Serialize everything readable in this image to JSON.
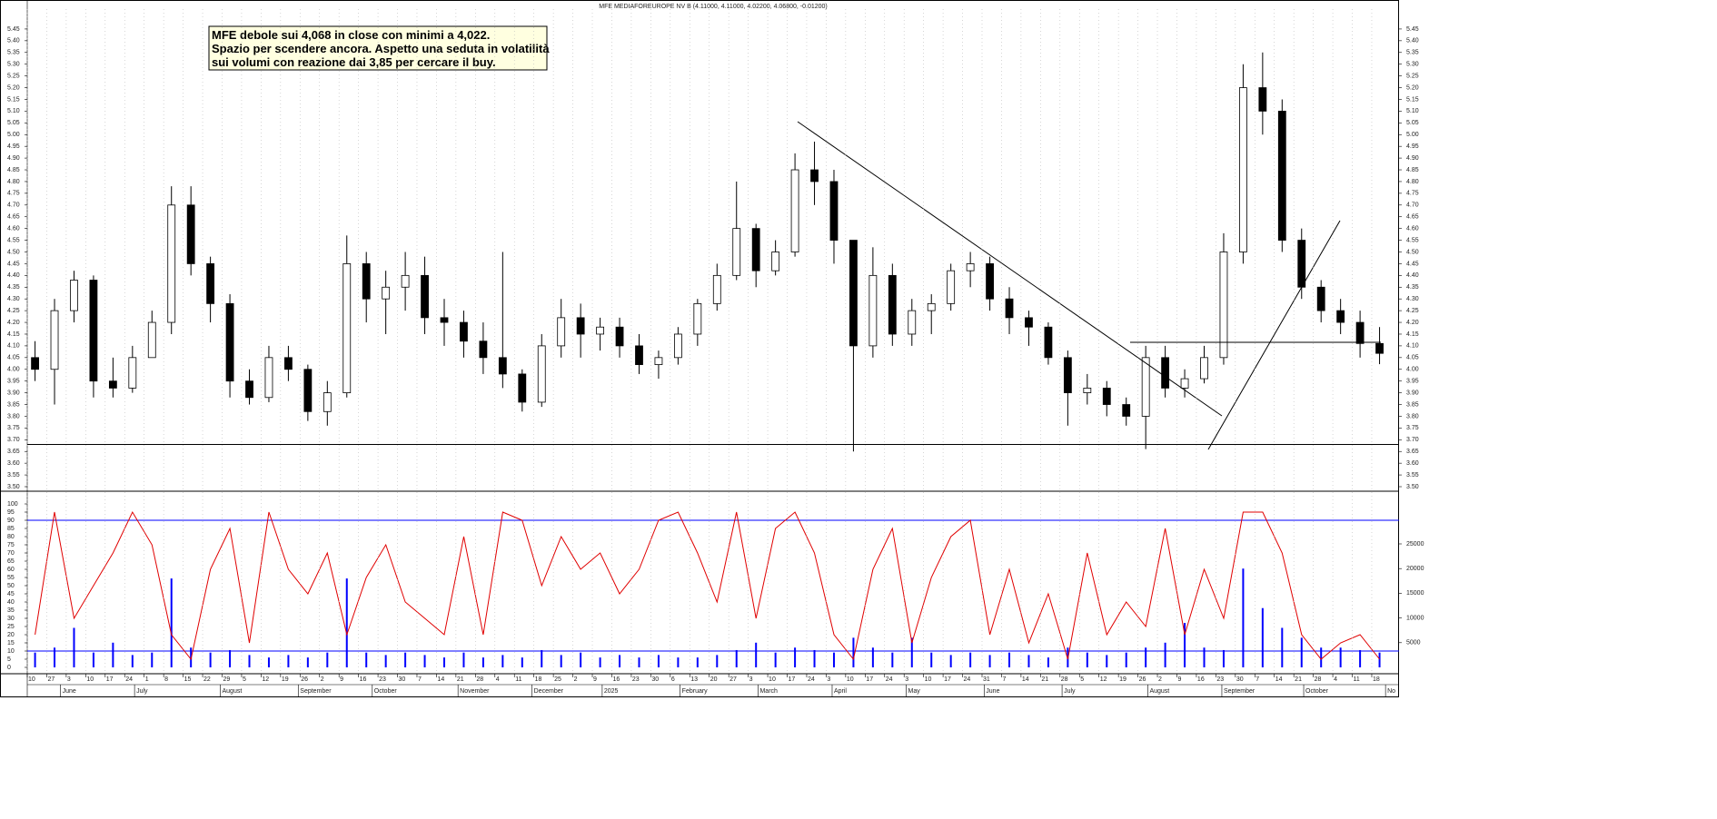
{
  "chart_data": [
    {
      "type": "candlestick",
      "title": "MFE MEDIAFOREUROPE NV B (4.11000, 4.11000, 4.02200, 4.06800, -0.01200)",
      "annotation": [
        "MFE debole sui 4,068 in close con minimi a 4,022.",
        "Spazio per scendere ancora. Aspetto una seduta in volatilità",
        "sui volumi con reazione dai 3,85 per cercare il buy."
      ],
      "xlim": [
        0,
        352
      ],
      "ylim": [
        3.5,
        5.5
      ],
      "yticks": [
        {
          "value": 3.5,
          "label": "3.50"
        },
        3.55,
        {
          "value": 3.6,
          "label": "3.60"
        },
        3.65,
        {
          "value": 3.7,
          "label": "3.70"
        },
        3.75,
        {
          "value": 3.8,
          "label": "3.80"
        },
        3.85,
        {
          "value": 3.9,
          "label": "3.90"
        },
        3.95,
        {
          "value": 4,
          "label": "4.00"
        },
        4.05,
        {
          "value": 4.1,
          "label": "4.10"
        },
        4.15,
        {
          "value": 4.2,
          "label": "4.20"
        },
        4.25,
        {
          "value": 4.3,
          "label": "4.30"
        },
        4.35,
        {
          "value": 4.4,
          "label": "4.40"
        },
        4.45,
        {
          "value": 4.5,
          "label": "4.50"
        },
        4.55,
        {
          "value": 4.6,
          "label": "4.60"
        },
        4.65,
        {
          "value": 4.7,
          "label": "4.70"
        },
        4.75,
        {
          "value": 4.8,
          "label": "4.80"
        },
        4.85,
        {
          "value": 4.9,
          "label": "4.90"
        },
        4.95,
        {
          "value": 5,
          "label": "5.00"
        },
        5.05,
        {
          "value": 5.1,
          "label": "5.10"
        },
        5.15,
        {
          "value": 5.2,
          "label": "5.20"
        },
        5.25,
        {
          "value": 5.3,
          "label": "5.30"
        },
        5.35,
        {
          "value": 5.4,
          "label": "5.40"
        },
        5.45
      ],
      "levels": [
        3.68
      ],
      "up_color": "#ffffff",
      "down_color": "#000000",
      "x": [
        2,
        7,
        12,
        17,
        22,
        27,
        32,
        37,
        42,
        47,
        52,
        57,
        62,
        67,
        72,
        77,
        82,
        87,
        92,
        97,
        102,
        107,
        112,
        117,
        122,
        127,
        132,
        137,
        142,
        147,
        152,
        157,
        162,
        167,
        172,
        177,
        182,
        187,
        192,
        197,
        202,
        207,
        212,
        217,
        222,
        227,
        232,
        237,
        242,
        247,
        252,
        257,
        262,
        267,
        272,
        277,
        282,
        287,
        292,
        297,
        302,
        307,
        312,
        317,
        322,
        327,
        332,
        337,
        342,
        347
      ],
      "open": [
        4.05,
        4.0,
        4.25,
        4.38,
        3.95,
        3.92,
        4.05,
        4.2,
        4.7,
        4.45,
        4.28,
        3.95,
        3.88,
        4.05,
        4.0,
        3.82,
        3.9,
        4.45,
        4.3,
        4.35,
        4.4,
        4.22,
        4.2,
        4.12,
        4.05,
        3.98,
        3.86,
        4.1,
        4.22,
        4.15,
        4.18,
        4.1,
        4.02,
        4.05,
        4.15,
        4.28,
        4.4,
        4.6,
        4.42,
        4.5,
        4.85,
        4.8,
        4.55,
        4.1,
        4.4,
        4.15,
        4.25,
        4.28,
        4.42,
        4.45,
        4.3,
        4.22,
        4.18,
        4.05,
        3.9,
        3.92,
        3.85,
        3.8,
        4.05,
        3.92,
        3.96,
        4.05,
        4.5,
        5.2,
        5.1,
        4.55,
        4.35,
        4.25,
        4.2,
        4.11
      ],
      "high": [
        4.12,
        4.3,
        4.42,
        4.4,
        4.05,
        4.1,
        4.25,
        4.78,
        4.78,
        4.48,
        4.32,
        4.0,
        4.1,
        4.1,
        4.02,
        3.95,
        4.57,
        4.5,
        4.42,
        4.5,
        4.48,
        4.3,
        4.25,
        4.2,
        4.5,
        4.0,
        4.15,
        4.3,
        4.28,
        4.22,
        4.22,
        4.15,
        4.08,
        4.18,
        4.3,
        4.45,
        4.8,
        4.62,
        4.55,
        4.92,
        4.97,
        4.85,
        4.55,
        4.52,
        4.45,
        4.3,
        4.32,
        4.45,
        4.5,
        4.48,
        4.35,
        4.25,
        4.2,
        4.08,
        3.98,
        3.95,
        3.88,
        4.1,
        4.1,
        4.0,
        4.1,
        4.58,
        5.3,
        5.35,
        5.15,
        4.6,
        4.38,
        4.3,
        4.25,
        4.18
      ],
      "low": [
        3.95,
        3.85,
        4.2,
        3.88,
        3.88,
        3.9,
        4.05,
        4.15,
        4.4,
        4.2,
        3.88,
        3.85,
        3.86,
        3.95,
        3.78,
        3.76,
        3.88,
        4.2,
        4.15,
        4.25,
        4.15,
        4.1,
        4.05,
        3.98,
        3.92,
        3.82,
        3.84,
        4.05,
        4.05,
        4.08,
        4.05,
        3.98,
        3.96,
        4.02,
        4.1,
        4.25,
        4.38,
        4.35,
        4.4,
        4.48,
        4.7,
        4.45,
        3.65,
        4.05,
        4.1,
        4.1,
        4.15,
        4.25,
        4.35,
        4.25,
        4.15,
        4.1,
        4.02,
        3.76,
        3.85,
        3.8,
        3.76,
        3.66,
        3.88,
        3.88,
        3.94,
        4.02,
        4.45,
        5.0,
        4.5,
        4.3,
        4.2,
        4.15,
        4.05,
        4.022
      ],
      "close": [
        4.0,
        4.25,
        4.38,
        3.95,
        3.92,
        4.05,
        4.2,
        4.7,
        4.45,
        4.28,
        3.95,
        3.88,
        4.05,
        4.0,
        3.82,
        3.9,
        4.45,
        4.3,
        4.35,
        4.4,
        4.22,
        4.2,
        4.12,
        4.05,
        3.98,
        3.86,
        4.1,
        4.22,
        4.15,
        4.18,
        4.1,
        4.02,
        4.05,
        4.15,
        4.28,
        4.4,
        4.6,
        4.42,
        4.5,
        4.85,
        4.8,
        4.55,
        4.1,
        4.4,
        4.15,
        4.25,
        4.28,
        4.42,
        4.45,
        4.3,
        4.22,
        4.18,
        4.05,
        3.9,
        3.92,
        3.85,
        3.8,
        4.05,
        3.92,
        3.96,
        4.05,
        4.5,
        5.2,
        5.1,
        4.55,
        4.35,
        4.25,
        4.2,
        4.11,
        4.068
      ]
    },
    {
      "type": "indicator",
      "xlim": [
        0,
        352
      ],
      "ylim": [
        0,
        100
      ],
      "yticks": [
        0,
        5,
        10,
        15,
        20,
        25,
        30,
        35,
        40,
        45,
        50,
        55,
        60,
        65,
        70,
        75,
        80,
        85,
        90,
        95,
        100
      ],
      "y2lim": [
        0,
        25000
      ],
      "y2ticks": [
        5000,
        10000,
        15000,
        20000,
        25000
      ],
      "levels": [
        90,
        10
      ],
      "level_color": "#0000ff",
      "x": [
        2,
        7,
        12,
        17,
        22,
        27,
        32,
        37,
        42,
        47,
        52,
        57,
        62,
        67,
        72,
        77,
        82,
        87,
        92,
        97,
        102,
        107,
        112,
        117,
        122,
        127,
        132,
        137,
        142,
        147,
        152,
        157,
        162,
        167,
        172,
        177,
        182,
        187,
        192,
        197,
        202,
        207,
        212,
        217,
        222,
        227,
        232,
        237,
        242,
        247,
        252,
        257,
        262,
        267,
        272,
        277,
        282,
        287,
        292,
        297,
        302,
        307,
        312,
        317,
        322,
        327,
        332,
        337,
        342,
        347
      ],
      "series": [
        {
          "type": "bar",
          "axis": "y2",
          "color": "#0000ff",
          "values": [
            3000,
            4000,
            8000,
            3000,
            5000,
            2500,
            3000,
            18000,
            4000,
            3000,
            3500,
            2500,
            2000,
            2500,
            2000,
            3000,
            18000,
            3000,
            2500,
            3000,
            2500,
            2000,
            3000,
            2000,
            2500,
            2000,
            3500,
            2500,
            3000,
            2000,
            2500,
            2000,
            2500,
            2000,
            2000,
            2500,
            3500,
            5000,
            3000,
            4000,
            3500,
            3000,
            6000,
            4000,
            3000,
            6000,
            3000,
            2500,
            3000,
            2500,
            3000,
            2500,
            2000,
            4000,
            3000,
            2500,
            3000,
            4000,
            5000,
            9000,
            4000,
            3500,
            20000,
            12000,
            8000,
            6000,
            4000,
            4000,
            3500,
            3000
          ]
        },
        {
          "type": "line",
          "color": "#e00000",
          "values": [
            20,
            95,
            30,
            50,
            70,
            95,
            75,
            20,
            5,
            60,
            85,
            15,
            95,
            60,
            45,
            70,
            20,
            55,
            75,
            40,
            30,
            20,
            80,
            20,
            95,
            90,
            50,
            80,
            60,
            70,
            45,
            60,
            90,
            95,
            70,
            40,
            95,
            30,
            85,
            95,
            70,
            20,
            5,
            60,
            85,
            15,
            55,
            80,
            90,
            20,
            60,
            15,
            45,
            5,
            70,
            20,
            40,
            25,
            85,
            20,
            60,
            30,
            95,
            95,
            70,
            20,
            5,
            15,
            20,
            5
          ]
        }
      ],
      "xticks": [
        0,
        5,
        10,
        15,
        20,
        25,
        30,
        35,
        40,
        45,
        50,
        55,
        60,
        65,
        70,
        75,
        80,
        85,
        90,
        95,
        100,
        105,
        110,
        115,
        120,
        125,
        130,
        135,
        140,
        145,
        150,
        155,
        160,
        165,
        170,
        175,
        180,
        185,
        190,
        195,
        200,
        205,
        210,
        215,
        220,
        225,
        230,
        235,
        240,
        245,
        250,
        255,
        260,
        265,
        270,
        275,
        280,
        285,
        290,
        295,
        300,
        305,
        310,
        315,
        320,
        325,
        330,
        335,
        340,
        345
      ],
      "day_labels": [
        10,
        27,
        3,
        10,
        17,
        24,
        1,
        8,
        15,
        22,
        29,
        5,
        12,
        19,
        26,
        2,
        9,
        16,
        23,
        30,
        7,
        14,
        21,
        28,
        4,
        11,
        18,
        25,
        2,
        9,
        16,
        23,
        30,
        6,
        13,
        20,
        27,
        3,
        10,
        17,
        24,
        3,
        10,
        17,
        24,
        3,
        10,
        17,
        24,
        31,
        7,
        14,
        21,
        28,
        5,
        12,
        19,
        26,
        2,
        9,
        16,
        23,
        30,
        7,
        14,
        21,
        28,
        4,
        11,
        18
      ],
      "month_labels": [
        {
          "value": 9,
          "label": "June"
        },
        {
          "value": 28,
          "label": "July"
        },
        {
          "value": 50,
          "label": "August"
        },
        {
          "value": 70,
          "label": "September"
        },
        {
          "value": 89,
          "label": "October"
        },
        {
          "value": 111,
          "label": "November"
        },
        {
          "value": 130,
          "label": "December"
        },
        {
          "value": 148,
          "label": "2025"
        },
        {
          "value": 168,
          "label": "February"
        },
        {
          "value": 188,
          "label": "March"
        },
        {
          "value": 207,
          "label": "April"
        },
        {
          "value": 226,
          "label": "May"
        },
        {
          "value": 246,
          "label": "June"
        },
        {
          "value": 266,
          "label": "July"
        },
        {
          "value": 288,
          "label": "August"
        },
        {
          "value": 307,
          "label": "September"
        },
        {
          "value": 328,
          "label": "October"
        },
        {
          "value": 349,
          "label": "No"
        }
      ]
    }
  ]
}
